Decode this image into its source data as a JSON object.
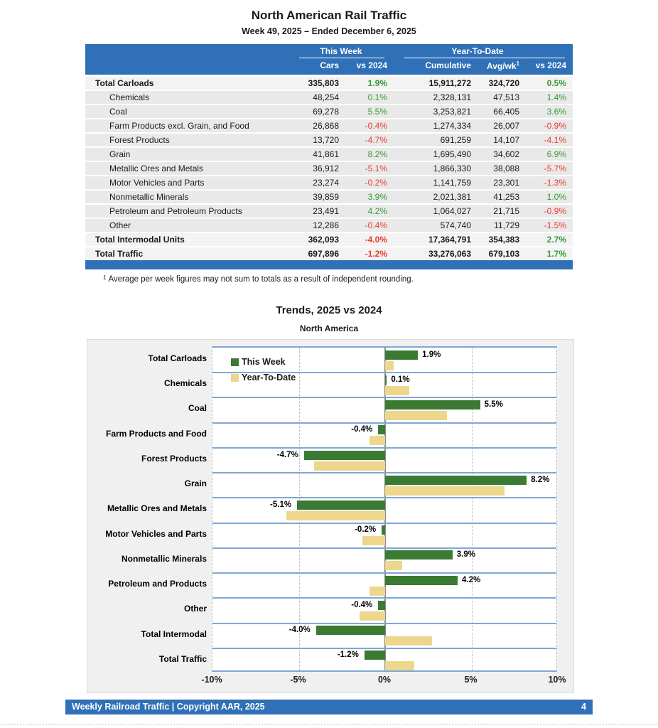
{
  "report": {
    "title": "North American Rail Traffic",
    "subtitle": "Week 49, 2025 – Ended December 6, 2025",
    "footnote_marker": "1",
    "footnote": "Average per week figures may not sum to totals as a result of independent rounding.",
    "table": {
      "group_headers": {
        "this_week": "This Week",
        "year_to_date": "Year-To-Date"
      },
      "columns": {
        "cars": "Cars",
        "week_vs": "vs 2024",
        "cumulative": "Cumulative",
        "avg_wk": "Avg/wk",
        "avg_wk_sup": "1",
        "ytd_vs": "vs 2024"
      },
      "rows": [
        {
          "label": "Total Carloads",
          "style": "total",
          "cars": "335,803",
          "week_vs": "1.9%",
          "cumulative": "15,911,272",
          "avg_wk": "324,720",
          "ytd_vs": "0.5%"
        },
        {
          "label": "Chemicals",
          "style": "sub",
          "cars": "48,254",
          "week_vs": "0.1%",
          "cumulative": "2,328,131",
          "avg_wk": "47,513",
          "ytd_vs": "1.4%"
        },
        {
          "label": "Coal",
          "style": "sub",
          "cars": "69,278",
          "week_vs": "5.5%",
          "cumulative": "3,253,821",
          "avg_wk": "66,405",
          "ytd_vs": "3.6%"
        },
        {
          "label": "Farm Products excl. Grain, and Food",
          "style": "sub",
          "cars": "26,868",
          "week_vs": "-0.4%",
          "cumulative": "1,274,334",
          "avg_wk": "26,007",
          "ytd_vs": "-0.9%"
        },
        {
          "label": "Forest Products",
          "style": "sub",
          "cars": "13,720",
          "week_vs": "-4.7%",
          "cumulative": "691,259",
          "avg_wk": "14,107",
          "ytd_vs": "-4.1%"
        },
        {
          "label": "Grain",
          "style": "sub",
          "cars": "41,861",
          "week_vs": "8.2%",
          "cumulative": "1,695,490",
          "avg_wk": "34,602",
          "ytd_vs": "6.9%"
        },
        {
          "label": "Metallic Ores and Metals",
          "style": "sub",
          "cars": "36,912",
          "week_vs": "-5.1%",
          "cumulative": "1,866,330",
          "avg_wk": "38,088",
          "ytd_vs": "-5.7%"
        },
        {
          "label": "Motor Vehicles and Parts",
          "style": "sub",
          "cars": "23,274",
          "week_vs": "-0.2%",
          "cumulative": "1,141,759",
          "avg_wk": "23,301",
          "ytd_vs": "-1.3%"
        },
        {
          "label": "Nonmetallic Minerals",
          "style": "sub",
          "cars": "39,859",
          "week_vs": "3.9%",
          "cumulative": "2,021,381",
          "avg_wk": "41,253",
          "ytd_vs": "1.0%"
        },
        {
          "label": "Petroleum and Petroleum Products",
          "style": "sub",
          "cars": "23,491",
          "week_vs": "4.2%",
          "cumulative": "1,064,027",
          "avg_wk": "21,715",
          "ytd_vs": "-0.9%"
        },
        {
          "label": "Other",
          "style": "sub",
          "cars": "12,286",
          "week_vs": "-0.4%",
          "cumulative": "574,740",
          "avg_wk": "11,729",
          "ytd_vs": "-1.5%"
        },
        {
          "label": "Total Intermodal Units",
          "style": "total",
          "cars": "362,093",
          "week_vs": "-4.0%",
          "cumulative": "17,364,791",
          "avg_wk": "354,383",
          "ytd_vs": "2.7%"
        },
        {
          "label": "Total Traffic",
          "style": "total",
          "cars": "697,896",
          "week_vs": "-1.2%",
          "cumulative": "33,276,063",
          "avg_wk": "679,103",
          "ytd_vs": "1.7%"
        }
      ]
    }
  },
  "chart_data": {
    "type": "bar",
    "orientation": "horizontal",
    "title": "Trends, 2025 vs 2024",
    "subtitle": "North America",
    "categories": [
      "Total Carloads",
      "Chemicals",
      "Coal",
      "Farm Products and Food",
      "Forest Products",
      "Grain",
      "Metallic Ores and Metals",
      "Motor Vehicles and Parts",
      "Nonmetallic Minerals",
      "Petroleum and Products",
      "Other",
      "Total Intermodal",
      "Total Traffic"
    ],
    "series": [
      {
        "name": "This Week",
        "color": "#3A7A33",
        "values": [
          1.9,
          0.1,
          5.5,
          -0.4,
          -4.7,
          8.2,
          -5.1,
          -0.2,
          3.9,
          4.2,
          -0.4,
          -4.0,
          -1.2
        ]
      },
      {
        "name": "Year-To-Date",
        "color": "#ECD78C",
        "values": [
          0.5,
          1.4,
          3.6,
          -0.9,
          -4.1,
          6.9,
          -5.7,
          -1.3,
          1.0,
          -0.9,
          -1.5,
          2.7,
          1.7
        ]
      }
    ],
    "bar_labels": [
      "1.9%",
      "0.1%",
      "5.5%",
      "-0.4%",
      "-4.7%",
      "8.2%",
      "-5.1%",
      "-0.2%",
      "3.9%",
      "4.2%",
      "-0.4%",
      "-4.0%",
      "-1.2%"
    ],
    "xlim": [
      -10,
      10
    ],
    "x_ticks": [
      -10,
      -5,
      0,
      5,
      10
    ],
    "x_tick_labels": [
      "-10%",
      "-5%",
      "0%",
      "5%",
      "10%"
    ],
    "gridlines_dashed_at": [
      -5,
      5
    ],
    "legend_position": "top-left-inside",
    "legend": [
      "This Week",
      "Year-To-Date"
    ]
  },
  "colors": {
    "header_blue": "#2F70B7",
    "row_separator_blue": "#7FA7D6",
    "positive_text": "#359A35",
    "negative_text": "#EA3B2E",
    "bar_green": "#3A7A33",
    "bar_tan": "#ECD78C"
  },
  "footer": {
    "text": "Weekly Railroad Traffic | Copyright AAR, 2025",
    "page_number": "4"
  }
}
